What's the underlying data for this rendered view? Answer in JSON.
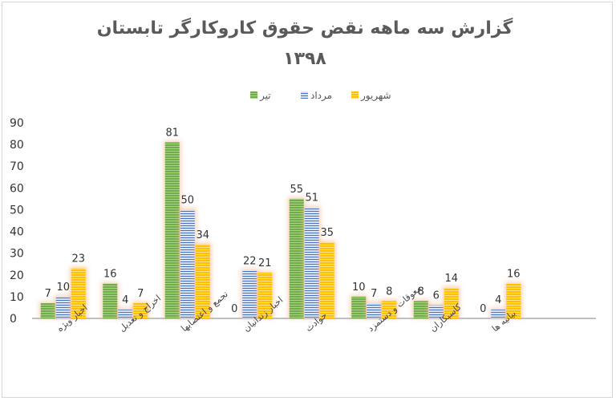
{
  "chart_data": {
    "type": "bar",
    "title": "گزارش سه ماهه نقض حقوق کاروکارگر تابستان",
    "subtitle": "۱۳۹۸",
    "categories": [
      "اخبار ویژه",
      "اخراج و تعدیل",
      "تجمع و اعتصابها",
      "اخبار زندانیان",
      "حوادث",
      "معوقات و دستمزد",
      "کاسبکاران",
      "بیانیه ها"
    ],
    "series": [
      {
        "name": "تیر",
        "values": [
          7,
          16,
          81,
          0,
          55,
          10,
          8,
          0
        ],
        "color": "#70ad47"
      },
      {
        "name": "مرداد",
        "values": [
          10,
          4,
          50,
          22,
          51,
          7,
          6,
          4
        ],
        "color": "#4472c4"
      },
      {
        "name": "شهریور",
        "values": [
          23,
          7,
          34,
          21,
          35,
          8,
          14,
          16
        ],
        "color": "#ffc000"
      }
    ],
    "ylim": [
      0,
      90
    ],
    "yticks": [
      0,
      10,
      20,
      30,
      40,
      50,
      60,
      70,
      80,
      90
    ],
    "legend_position": "top",
    "grid": false,
    "xlabel": "",
    "ylabel": ""
  }
}
